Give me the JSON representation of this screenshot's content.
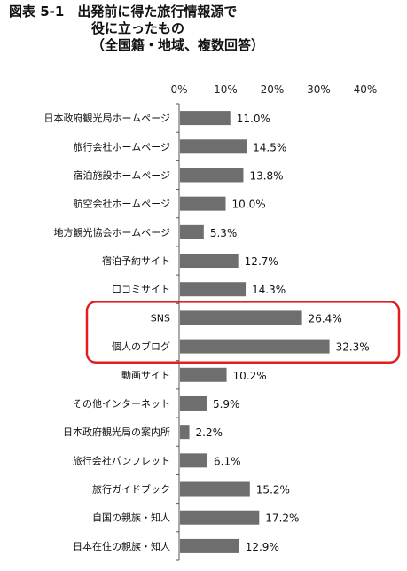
{
  "title": {
    "line1": "図表 5-1　出発前に得た旅行情報源で",
    "line2": "役に立ったもの",
    "line3": "（全国籍・地域、複数回答）"
  },
  "colors": {
    "bar": "#6e6e6e",
    "highlight": "#e02020"
  },
  "chart_data": {
    "type": "bar",
    "orientation": "horizontal",
    "title": "図表 5-1　出発前に得た旅行情報源で役に立ったもの（全国籍・地域、複数回答）",
    "xlim": [
      0,
      40
    ],
    "x_ticks": [
      "0%",
      "10%",
      "20%",
      "30%",
      "40%"
    ],
    "tick_values": [
      0,
      10,
      20,
      30,
      40
    ],
    "grid": false,
    "categories": [
      "日本政府観光局ホームページ",
      "旅行会社ホームページ",
      "宿泊施設ホームページ",
      "航空会社ホームページ",
      "地方観光協会ホームページ",
      "宿泊予約サイト",
      "口コミサイト",
      "SNS",
      "個人のブログ",
      "動画サイト",
      "その他インターネット",
      "日本政府観光局の案内所",
      "旅行会社パンフレット",
      "旅行ガイドブック",
      "自国の親族・知人",
      "日本在住の親族・知人"
    ],
    "values": [
      11.0,
      14.5,
      13.8,
      10.0,
      5.3,
      12.7,
      14.3,
      26.4,
      32.3,
      10.2,
      5.9,
      2.2,
      6.1,
      15.2,
      17.2,
      12.9
    ],
    "value_labels": [
      "11.0%",
      "14.5%",
      "13.8%",
      "10.0%",
      "5.3%",
      "12.7%",
      "14.3%",
      "26.4%",
      "32.3%",
      "10.2%",
      "5.9%",
      "2.2%",
      "6.1%",
      "15.2%",
      "17.2%",
      "12.9%"
    ],
    "highlighted": [
      "SNS",
      "個人のブログ"
    ]
  }
}
